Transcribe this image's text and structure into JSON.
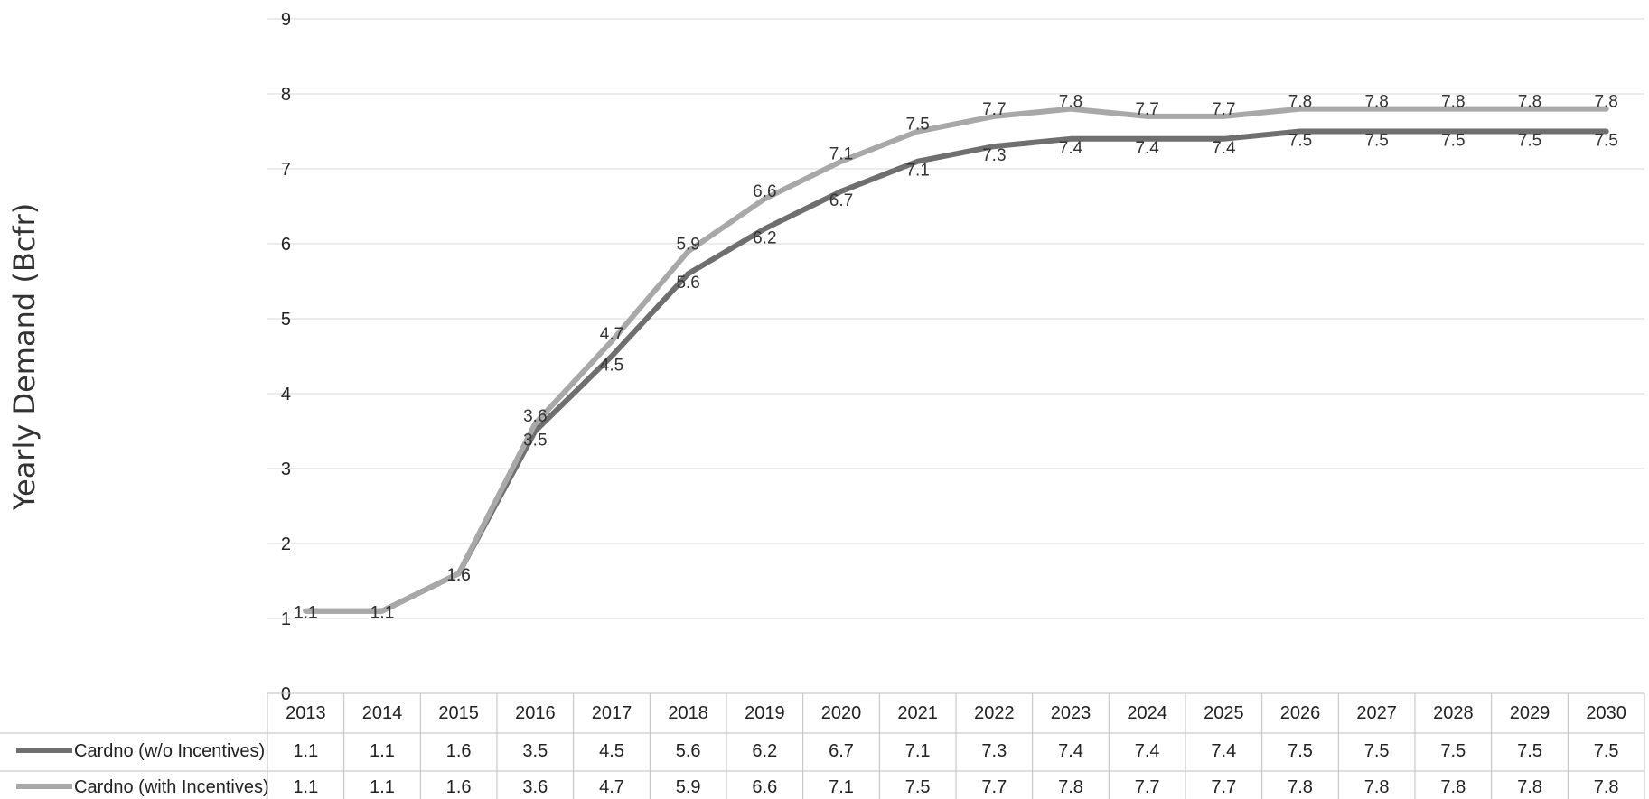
{
  "chart_data": {
    "type": "line",
    "ylabel": "Yearly Demand (Bcfr)",
    "xlabel": "",
    "ylim": [
      0,
      9
    ],
    "yticks": [
      "0",
      "1",
      "2",
      "3",
      "4",
      "5",
      "6",
      "7",
      "8",
      "9"
    ],
    "grid": true,
    "legend": "data-table-bottom",
    "categories": [
      "2013",
      "2014",
      "2015",
      "2016",
      "2017",
      "2018",
      "2019",
      "2020",
      "2021",
      "2022",
      "2023",
      "2024",
      "2025",
      "2026",
      "2027",
      "2028",
      "2029",
      "2030"
    ],
    "series": [
      {
        "name": "Cardno (w/o Incentives)",
        "color": "#6f6f6f",
        "values": [
          1.1,
          1.1,
          1.6,
          3.5,
          4.5,
          5.6,
          6.2,
          6.7,
          7.1,
          7.3,
          7.4,
          7.4,
          7.4,
          7.5,
          7.5,
          7.5,
          7.5,
          7.5
        ]
      },
      {
        "name": "Cardno (with Incentives)",
        "color": "#a8a8a8",
        "values": [
          1.1,
          1.1,
          1.6,
          3.6,
          4.7,
          5.9,
          6.6,
          7.1,
          7.5,
          7.7,
          7.8,
          7.7,
          7.7,
          7.8,
          7.8,
          7.8,
          7.8,
          7.8
        ]
      }
    ]
  }
}
